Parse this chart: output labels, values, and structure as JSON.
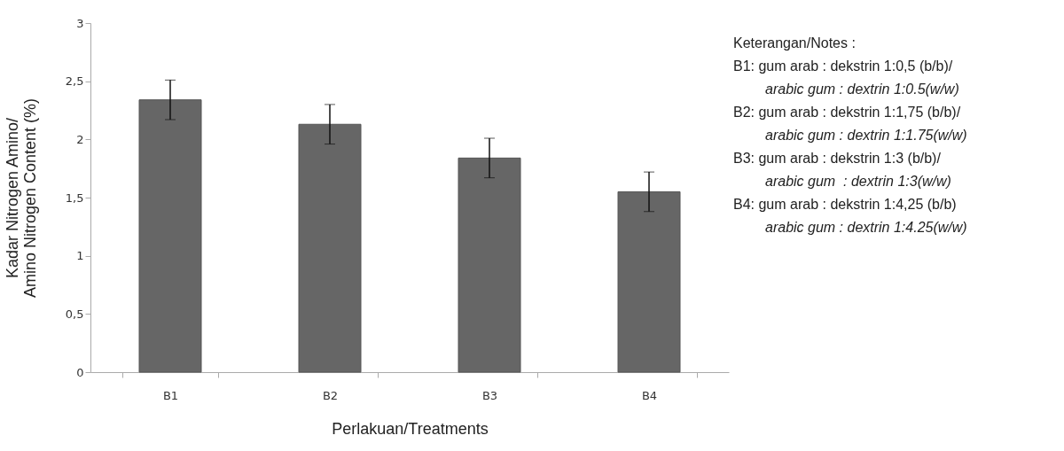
{
  "chart_data": {
    "type": "bar",
    "categories": [
      "B1",
      "B2",
      "B3",
      "B4"
    ],
    "values": [
      2.34,
      2.13,
      1.84,
      1.55
    ],
    "errors": [
      0.17,
      0.17,
      0.17,
      0.17
    ],
    "color": "#666666",
    "ylim": [
      0,
      3
    ],
    "yticks": [
      0,
      {
        "value": 0.5,
        "label": "0,5"
      },
      1,
      {
        "value": 1.5,
        "label": "1,5"
      },
      2,
      {
        "value": 2.5,
        "label": "2,5"
      },
      3
    ],
    "grid": false,
    "xlabel": "Perlakuan/Treatments",
    "ylabel": "Kadar Nitrogen Amino/\nAmino Nitrogen Content (%)",
    "annotations": [
      "Keterangan/Notes :",
      "B1: gum arab : dekstrin 1:0,5 (b/b)/",
      "arabic gum : dextrin 1:0.5(w/w)",
      "B2: gum arab : dekstrin 1:1,75 (b/b)/",
      "arabic gum : dextrin 1:1.75(w/w)",
      "B3: gum arab : dekstrin 1:3 (b/b)/",
      "arabic gum  : dextrin 1:3(w/w)",
      "B4: gum arab : dekstrin 1:4,25 (b/b)",
      "arabic gum : dextrin 1:4.25(w/w)"
    ]
  }
}
